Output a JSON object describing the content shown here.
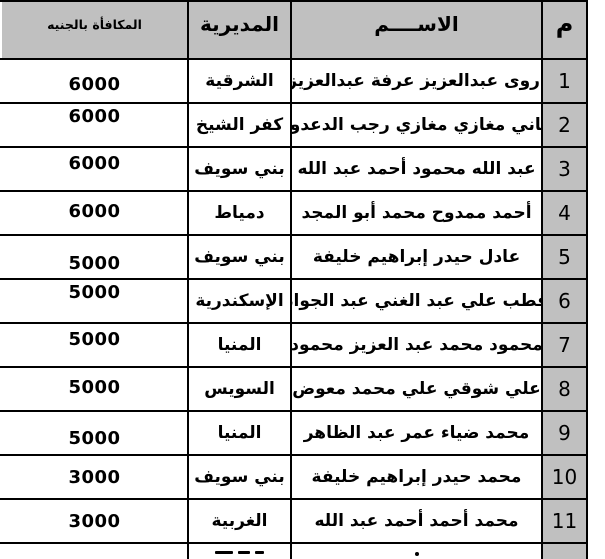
{
  "table": {
    "headers": {
      "num": "م",
      "name": "الاســــم",
      "directorate": "المديرية",
      "reward": "المكافأة بالجنيه"
    },
    "rows": [
      {
        "num": "1",
        "name": "أروى عبدالعزيز عرفة عبدالعزيز",
        "directorate": "الشرقية",
        "reward": "6000"
      },
      {
        "num": "2",
        "name": "هاني مغازي مغازي رجب الدعدور",
        "directorate": "كفر الشيخ",
        "reward": "6000"
      },
      {
        "num": "3",
        "name": "عبد الله محمود أحمد عبد الله",
        "directorate": "بني سويف",
        "reward": "6000"
      },
      {
        "num": "4",
        "name": "أحمد ممدوح محمد أبو المجد",
        "directorate": "دمياط",
        "reward": "6000"
      },
      {
        "num": "5",
        "name": "عادل حيدر إبراهيم خليفة",
        "directorate": "بني سويف",
        "reward": "5000"
      },
      {
        "num": "6",
        "name": "قطب علي عبد الغني عبد الجواد",
        "directorate": "الإسكندرية",
        "reward": "5000"
      },
      {
        "num": "7",
        "name": "محمود محمد عبد العزيز محمود",
        "directorate": "المنيا",
        "reward": "5000"
      },
      {
        "num": "8",
        "name": "علي شوقي علي محمد معوض",
        "directorate": "السويس",
        "reward": "5000"
      },
      {
        "num": "9",
        "name": "محمد ضياء عمر عبد الظاهر",
        "directorate": "المنيا",
        "reward": "5000"
      },
      {
        "num": "10",
        "name": "محمد حيدر إبراهيم خليفة",
        "directorate": "بني سويف",
        "reward": "3000"
      },
      {
        "num": "11",
        "name": "محمد أحمد أحمد عبد الله",
        "directorate": "الغربية",
        "reward": "3000"
      }
    ],
    "colors": {
      "header_bg": "#c0c0c0",
      "number_column_bg": "#c0c0c0",
      "border": "#000000",
      "row_bg": "#ffffff"
    }
  }
}
